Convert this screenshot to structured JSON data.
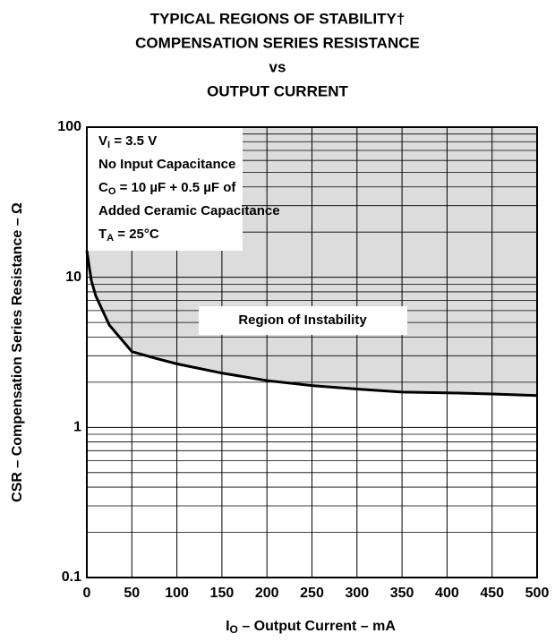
{
  "chart_data": {
    "type": "line",
    "title": [
      "TYPICAL REGIONS OF STABILITY†",
      "COMPENSATION SERIES RESISTANCE",
      "vs",
      "OUTPUT CURRENT"
    ],
    "xlabel": [
      "I",
      "O",
      " – Output Current – mA"
    ],
    "ylabel": "CSR – Compensation Series Resistance – Ω",
    "annotations": [
      [
        "V",
        "I",
        " = 3.5 V"
      ],
      [
        "No Input Capacitance"
      ],
      [
        "C",
        "O",
        " = 10 µF + 0.5 µF of"
      ],
      [
        "Added Ceramic Capacitance"
      ],
      [
        "T",
        "A",
        " = 25°C"
      ]
    ],
    "region_label": "Region of Instability",
    "x": [
      0,
      5,
      10,
      25,
      50,
      75,
      100,
      150,
      200,
      250,
      300,
      350,
      400,
      450,
      500
    ],
    "series": [
      {
        "color": "#000000",
        "values": [
          15,
          9.5,
          7.5,
          4.8,
          3.2,
          2.9,
          2.65,
          2.3,
          2.05,
          1.9,
          1.8,
          1.72,
          1.7,
          1.67,
          1.63
        ]
      }
    ],
    "region_color": "#dcdcdc",
    "xlim": [
      0,
      500
    ],
    "xticks": [
      0,
      50,
      100,
      150,
      200,
      250,
      300,
      350,
      400,
      450,
      500
    ],
    "ylim": [
      0.1,
      100
    ],
    "yticks": [
      0.1,
      1,
      10,
      100
    ],
    "ylog": true,
    "grid": true
  }
}
